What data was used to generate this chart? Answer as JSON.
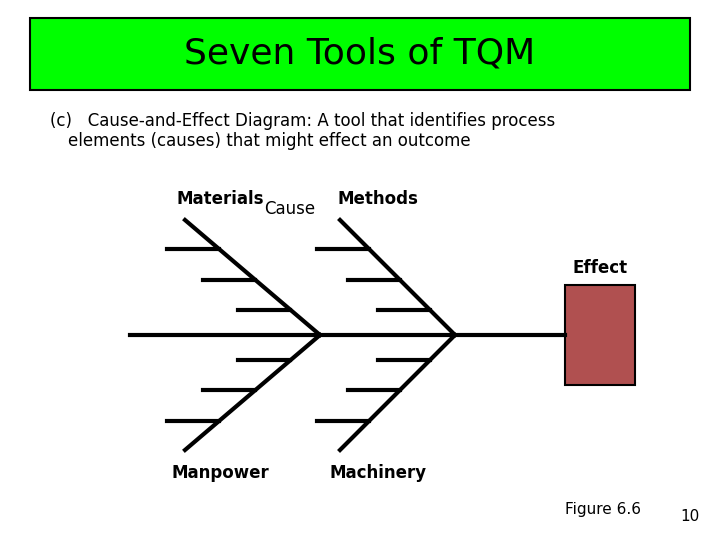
{
  "title": "Seven Tools of TQM",
  "title_bg_color": "#00ff00",
  "title_fontsize": 26,
  "subtitle_line1": "(c)   Cause-and-Effect Diagram: A tool that identifies process",
  "subtitle_line2": "         elements (causes) that might effect an outcome",
  "subtitle_fontsize": 12,
  "cause_label": "Cause",
  "effect_label": "Effect",
  "effect_box_color": "#b05050",
  "figure_note": "Figure 6.6",
  "page_number": "10",
  "bg_color": "#ffffff",
  "line_color": "#000000",
  "line_width": 3.0
}
